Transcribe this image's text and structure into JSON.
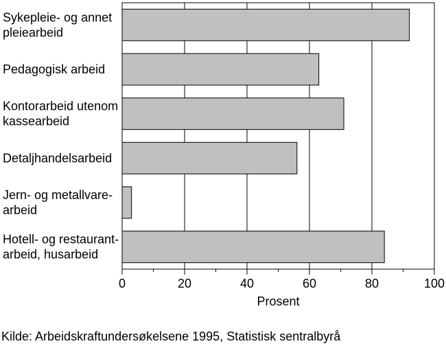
{
  "chart_data": {
    "type": "bar",
    "orientation": "horizontal",
    "categories": [
      [
        "Sykepleie- og annet",
        "pleiearbeid"
      ],
      [
        "Pedagogisk arbeid"
      ],
      [
        "Kontorarbeid utenom",
        "kassearbeid"
      ],
      [
        "Detaljhandelsarbeid"
      ],
      [
        "Jern- og metallvare-",
        "arbeid"
      ],
      [
        "Hotell- og restaurant-",
        "arbeid, husarbeid"
      ]
    ],
    "values": [
      92,
      63,
      71,
      56,
      3,
      84
    ],
    "xlabel": "Prosent",
    "xlim": [
      0,
      100
    ],
    "xticks": [
      0,
      20,
      40,
      60,
      80,
      100
    ],
    "grid": "vertical",
    "bar_color": "#c0c0c0"
  },
  "source": "Kilde: Arbeidskraftundersøkelsene 1995, Statistisk sentralbyrå"
}
